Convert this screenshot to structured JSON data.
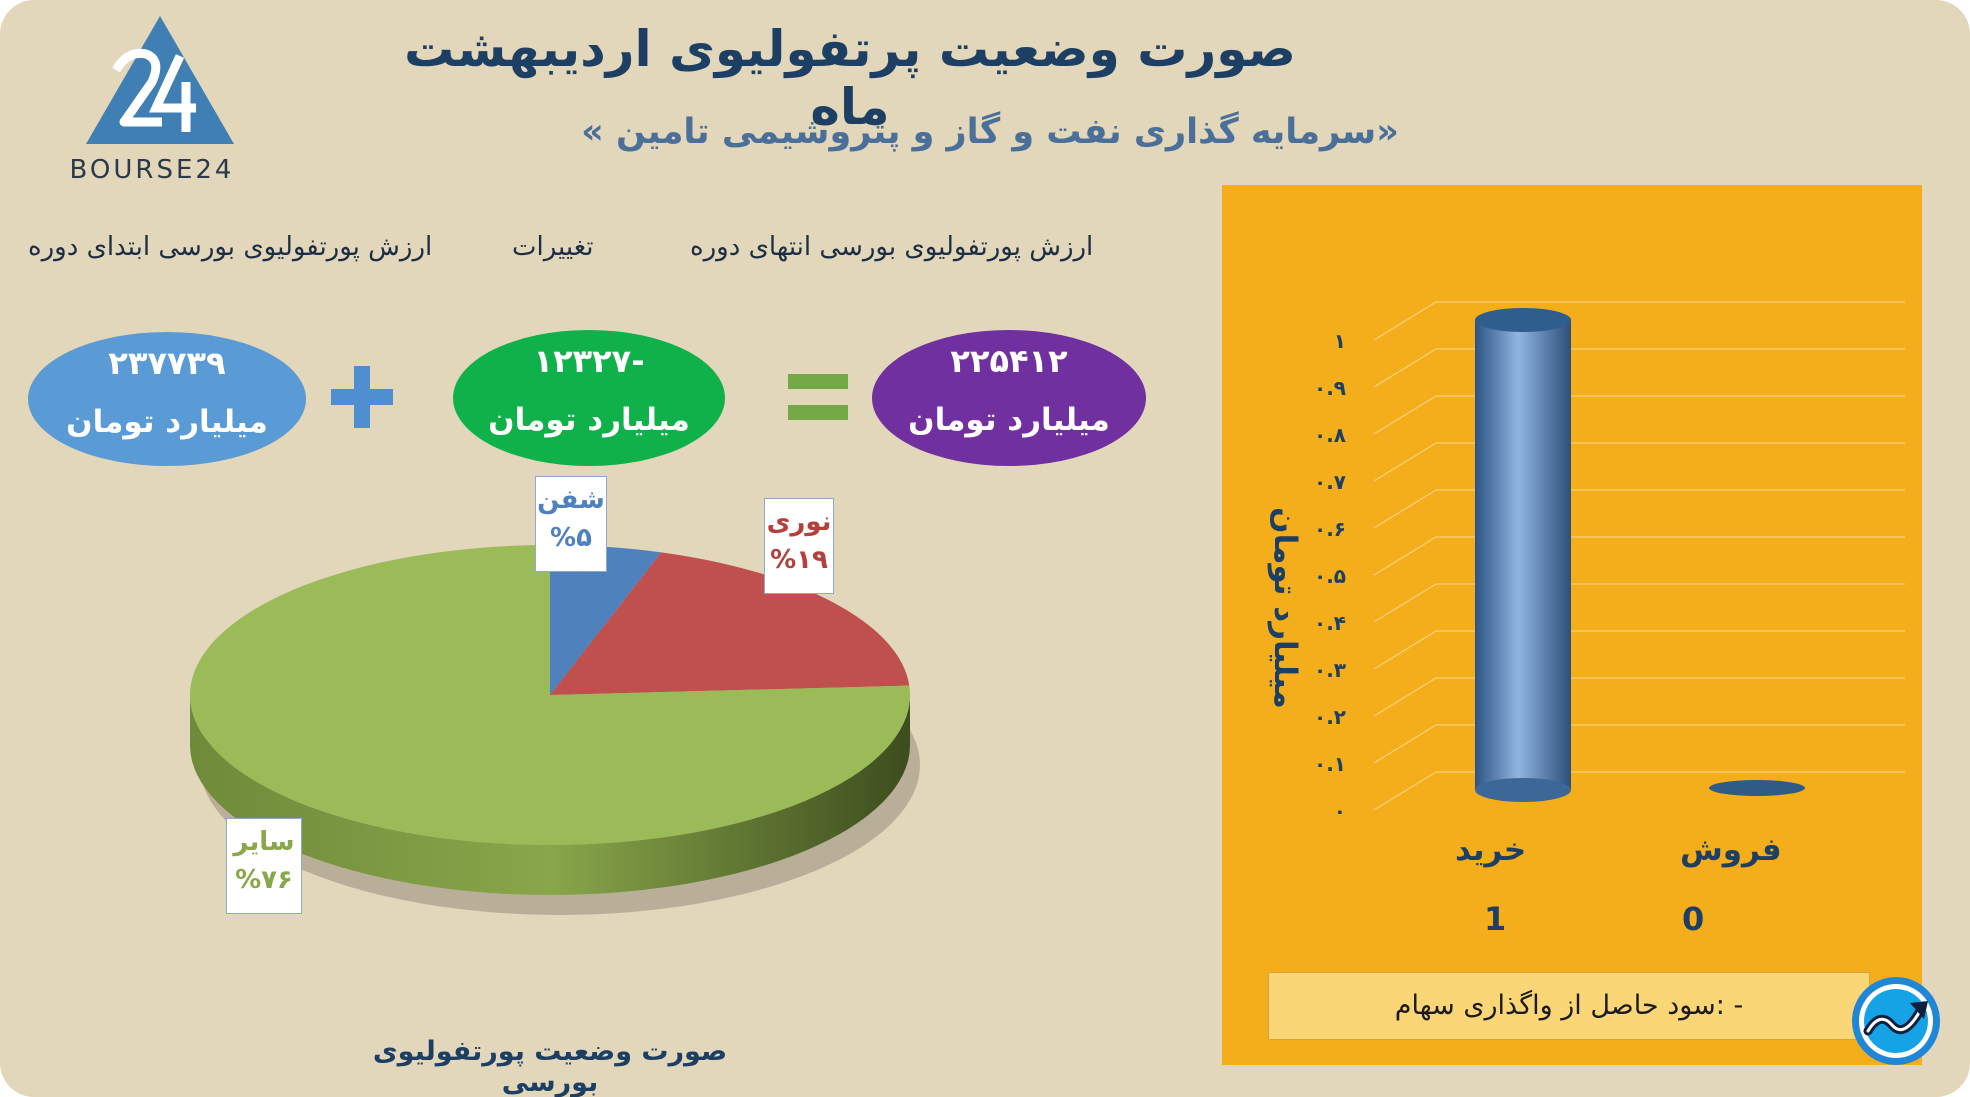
{
  "header": {
    "title": "صورت وضعیت پرتفولیوی اردیبهشت ماه",
    "subtitle": "«سرمایه گذاری نفت و گاز و پتروشیمی تامین »"
  },
  "logo": {
    "text": "BOURSE24",
    "icon": "bourse24-logo-icon"
  },
  "summary": {
    "labels": {
      "start": "ارزش پورتفولیوی بورسی ابتدای دوره",
      "change": "تغییرات",
      "end": "ارزش پورتفولیوی بورسی انتهای دوره"
    },
    "start": {
      "value": "۲۳۷۷۳۹",
      "unit": "میلیارد تومان",
      "color": "#5b9bd5"
    },
    "change": {
      "value": "-۱۲۳۲۷",
      "unit": "میلیارد تومان",
      "color": "#10b14b"
    },
    "end": {
      "value": "۲۲۵۴۱۲",
      "unit": "میلیارد تومان",
      "color": "#7030a0"
    },
    "plus_icon": "plus-icon",
    "equals_icon": "equals-icon"
  },
  "pie": {
    "caption": "صورت وضعیت پورتفولیوی بورسی",
    "slices": [
      {
        "name": "شفن",
        "pct_label": "%۵",
        "color": "#4f81bd",
        "label_color": "#4f81bd"
      },
      {
        "name": "نوری",
        "pct_label": "%۱۹",
        "color": "#c0504d",
        "label_color": "#b4403c"
      },
      {
        "name": "سایر",
        "pct_label": "%۷۶",
        "color": "#9bbb59",
        "label_color": "#8aa84a"
      }
    ]
  },
  "bar_panel": {
    "ylabel": "میلیارد تومان",
    "categories": [
      "خرید",
      "فروش"
    ],
    "counts": [
      "1",
      "0"
    ],
    "profit_text": "- :سود حاصل از واگذاری سهام",
    "badge_icon": "trend-up-badge-icon"
  },
  "chart_data": [
    {
      "type": "pie",
      "title": "صورت وضعیت پورتفولیوی بورسی",
      "categories": [
        "شفن",
        "نوری",
        "سایر"
      ],
      "values": [
        5,
        19,
        76
      ],
      "colors": [
        "#4f81bd",
        "#c0504d",
        "#9bbb59"
      ]
    },
    {
      "type": "bar",
      "categories": [
        "خرید",
        "فروش"
      ],
      "values": [
        1,
        0
      ],
      "ylabel": "میلیارد تومان",
      "ylim": [
        0,
        1
      ],
      "yticks": [
        "۰",
        "۰.۱",
        "۰.۲",
        "۰.۳",
        "۰.۴",
        "۰.۵",
        "۰.۶",
        "۰.۷",
        "۰.۸",
        "۰.۹",
        "۱"
      ],
      "grid": true
    }
  ]
}
